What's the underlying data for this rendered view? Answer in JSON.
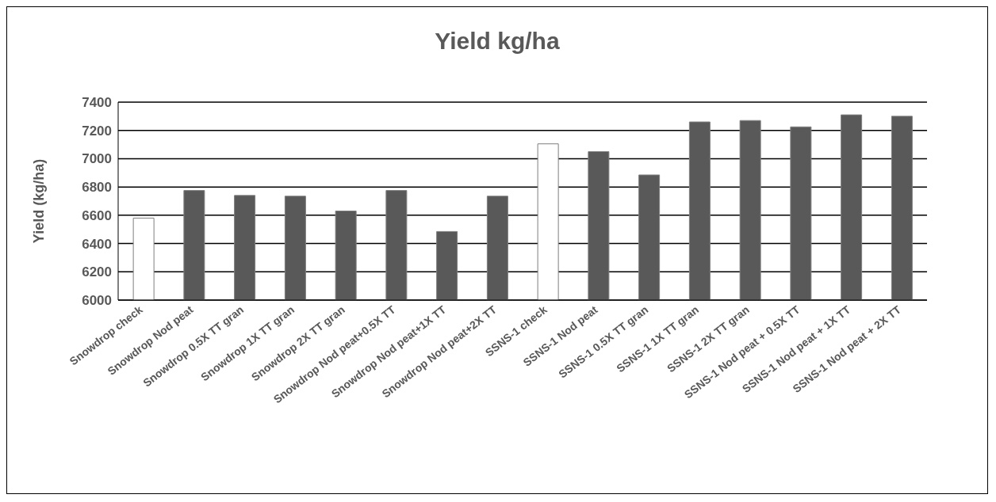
{
  "chart_data": {
    "type": "bar",
    "title": "Yield kg/ha",
    "ylabel": "Yield (kg/ha)",
    "categories": [
      "Snowdrop check",
      "Snowdrop Nod peat",
      "Snowdrop 0.5X TT gran",
      "Snowdrop 1X TT gran",
      "Snowdrop 2X TT gran",
      "Snowdrop Nod peat+0.5X TT",
      "Snowdrop Nod peat+1X TT",
      "Snowdrop Nod peat+2X TT",
      "SSNS-1 check",
      "SSNS-1 Nod peat",
      "SSNS-1 0.5X TT gran",
      "SSNS-1 1X TT gran",
      "SSNS-1 2X TT gran",
      "SSNS-1 Nod peat + 0.5X TT",
      "SSNS-1 Nod peat + 1X TT",
      "SSNS-1 Nod peat + 2X TT"
    ],
    "values": [
      6580,
      6775,
      6740,
      6735,
      6630,
      6775,
      6485,
      6735,
      7105,
      7050,
      6885,
      7260,
      7270,
      7225,
      7310,
      7300
    ],
    "colors": [
      "#ffffff",
      "#595959",
      "#595959",
      "#595959",
      "#595959",
      "#595959",
      "#595959",
      "#595959",
      "#ffffff",
      "#595959",
      "#595959",
      "#595959",
      "#595959",
      "#595959",
      "#595959",
      "#595959"
    ],
    "ylim": [
      6000,
      7400
    ],
    "yticks": [
      6000,
      6200,
      6400,
      6600,
      6800,
      7000,
      7200,
      7400
    ],
    "grid": "y"
  }
}
